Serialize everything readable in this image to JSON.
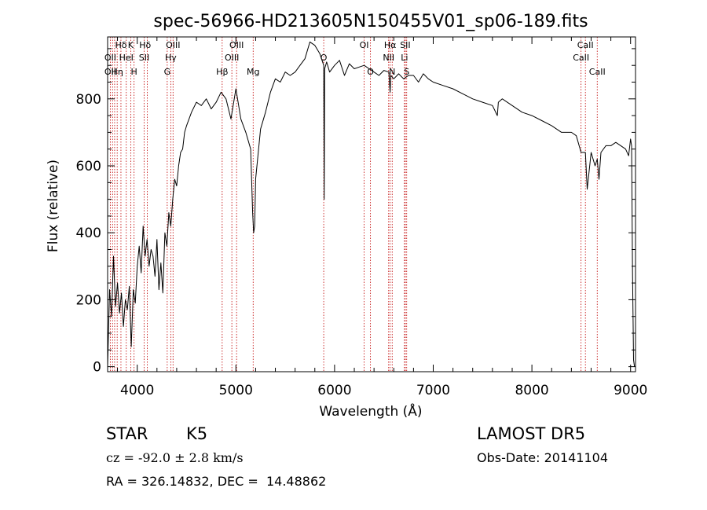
{
  "chart_data": {
    "type": "line",
    "title": "spec-56966-HD213605N150455V01_sp06-189.fits",
    "xlabel": "Wavelength (Å)",
    "ylabel": "Flux (relative)",
    "xlim": [
      3700,
      9050
    ],
    "ylim": [
      -15,
      985
    ],
    "xticks": [
      4000,
      5000,
      6000,
      7000,
      8000,
      9000
    ],
    "yticks": [
      0,
      200,
      400,
      600,
      800
    ],
    "series": [
      {
        "x": [
          3700,
          3720,
          3740,
          3760,
          3780,
          3800,
          3820,
          3840,
          3860,
          3880,
          3900,
          3920,
          3940,
          3960,
          3980,
          4000,
          4020,
          4040,
          4060,
          4080,
          4100,
          4120,
          4140,
          4160,
          4180,
          4200,
          4220,
          4240,
          4260,
          4280,
          4300,
          4320,
          4340,
          4360,
          4380,
          4400,
          4420,
          4440,
          4460,
          4480,
          4500,
          4550,
          4600,
          4650,
          4700,
          4750,
          4800,
          4850,
          4900,
          4950,
          5000,
          5050,
          5100,
          5150,
          5170,
          5180,
          5190,
          5200,
          5250,
          5300,
          5350,
          5400,
          5450,
          5500,
          5550,
          5600,
          5650,
          5700,
          5750,
          5800,
          5850,
          5890,
          5895,
          5900,
          5920,
          5950,
          6000,
          6050,
          6100,
          6150,
          6200,
          6250,
          6300,
          6350,
          6400,
          6450,
          6500,
          6550,
          6563,
          6570,
          6600,
          6650,
          6700,
          6750,
          6800,
          6850,
          6900,
          6950,
          7000,
          7100,
          7200,
          7300,
          7400,
          7500,
          7600,
          7650,
          7660,
          7700,
          7800,
          7900,
          8000,
          8100,
          8200,
          8300,
          8400,
          8450,
          8498,
          8520,
          8542,
          8560,
          8600,
          8640,
          8662,
          8680,
          8700,
          8750,
          8800,
          8850,
          8900,
          8950,
          8980,
          9000,
          9010,
          9020,
          9030,
          9040
        ],
        "y": [
          0,
          230,
          150,
          330,
          180,
          250,
          160,
          220,
          120,
          200,
          170,
          240,
          60,
          230,
          190,
          300,
          360,
          280,
          420,
          330,
          380,
          300,
          350,
          330,
          270,
          380,
          230,
          310,
          220,
          400,
          360,
          460,
          420,
          500,
          560,
          540,
          600,
          640,
          650,
          700,
          720,
          760,
          790,
          780,
          800,
          770,
          790,
          820,
          800,
          740,
          830,
          740,
          700,
          650,
          460,
          400,
          420,
          560,
          710,
          760,
          820,
          860,
          850,
          880,
          870,
          880,
          900,
          920,
          970,
          960,
          935,
          900,
          500,
          890,
          910,
          880,
          900,
          915,
          870,
          905,
          890,
          895,
          900,
          890,
          880,
          870,
          885,
          880,
          820,
          870,
          860,
          875,
          860,
          870,
          870,
          850,
          875,
          860,
          850,
          840,
          830,
          815,
          800,
          790,
          780,
          750,
          790,
          800,
          780,
          760,
          750,
          735,
          720,
          700,
          700,
          690,
          640,
          640,
          640,
          530,
          640,
          600,
          620,
          560,
          640,
          660,
          660,
          670,
          660,
          650,
          630,
          680,
          660,
          280,
          20,
          0
        ]
      }
    ],
    "line_labels": [
      {
        "text": "Hδ",
        "x": 3835,
        "row": 1
      },
      {
        "text": "K",
        "x": 3934,
        "row": 1
      },
      {
        "text": "Hδ",
        "x": 4080,
        "row": 1
      },
      {
        "text": "OIII",
        "x": 4363,
        "row": 1
      },
      {
        "text": "OIII",
        "x": 5007,
        "row": 1
      },
      {
        "text": "OI",
        "x": 6300,
        "row": 1
      },
      {
        "text": "Hα",
        "x": 6563,
        "row": 1
      },
      {
        "text": "SII",
        "x": 6717,
        "row": 1
      },
      {
        "text": "CaII",
        "x": 8542,
        "row": 1
      },
      {
        "text": "OII",
        "x": 3727,
        "row": 2
      },
      {
        "text": "HeI",
        "x": 3889,
        "row": 2
      },
      {
        "text": "SII",
        "x": 4070,
        "row": 2
      },
      {
        "text": "Hγ",
        "x": 4340,
        "row": 2
      },
      {
        "text": "OIII",
        "x": 4959,
        "row": 2
      },
      {
        "text": "O",
        "x": 5890,
        "row": 2
      },
      {
        "text": "NII",
        "x": 6548,
        "row": 2
      },
      {
        "text": "Li",
        "x": 6708,
        "row": 2
      },
      {
        "text": "CaII",
        "x": 8498,
        "row": 2
      },
      {
        "text": "OII",
        "x": 3727,
        "row": 3
      },
      {
        "text": "Hη",
        "x": 3797,
        "row": 3
      },
      {
        "text": "H",
        "x": 3968,
        "row": 3
      },
      {
        "text": "G",
        "x": 4304,
        "row": 3
      },
      {
        "text": "Hβ",
        "x": 4861,
        "row": 3
      },
      {
        "text": "Mg",
        "x": 5175,
        "row": 3
      },
      {
        "text": "O",
        "x": 6364,
        "row": 3
      },
      {
        "text": "N",
        "x": 6584,
        "row": 3
      },
      {
        "text": "S",
        "x": 6731,
        "row": 3
      },
      {
        "text": "CaII",
        "x": 8662,
        "row": 3
      }
    ],
    "line_markers": [
      3727,
      3750,
      3771,
      3797,
      3835,
      3889,
      3934,
      3968,
      4070,
      4102,
      4304,
      4340,
      4363,
      4861,
      4959,
      5007,
      5175,
      5890,
      6300,
      6364,
      6548,
      6563,
      6584,
      6708,
      6717,
      6731,
      8498,
      8542,
      8662
    ],
    "grid": false,
    "colors": {
      "spectrum": "#000000",
      "markers": "#c00000"
    }
  },
  "info": {
    "object_type": "STAR",
    "subclass": "K5",
    "survey": "LAMOST DR5",
    "velocity": "cz = -92.0 ± 2.8 km/s",
    "obs_date": "Obs-Date: 20141104",
    "coords": "RA = 326.14832, DEC =  14.48862"
  }
}
